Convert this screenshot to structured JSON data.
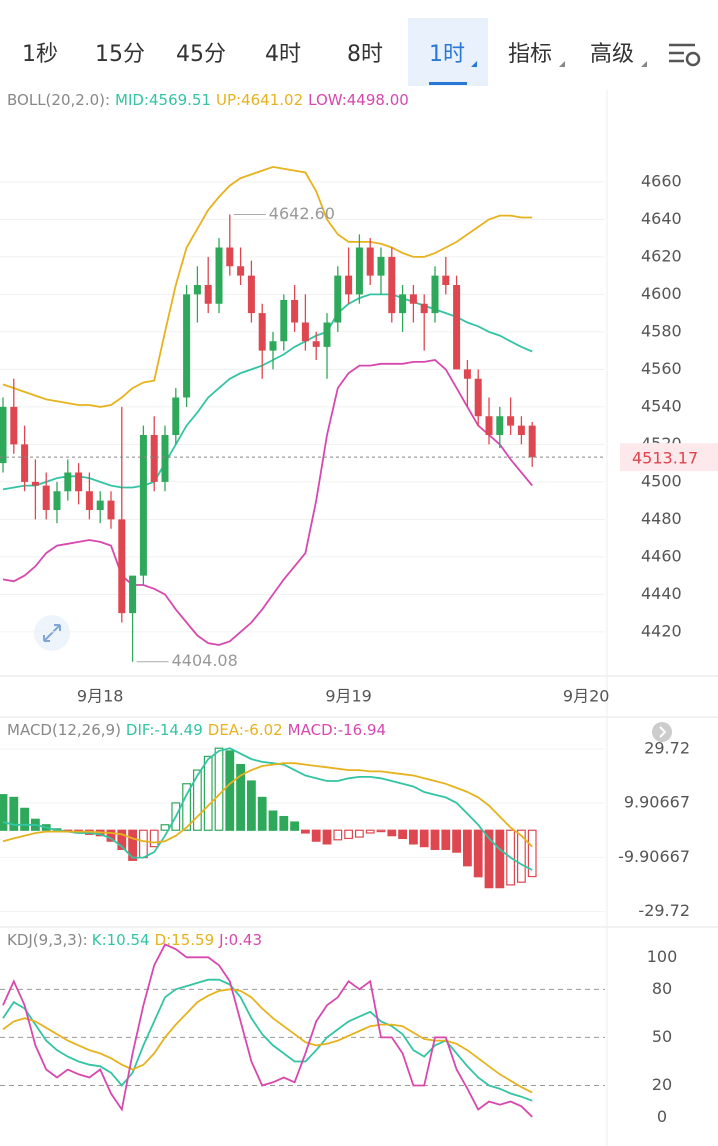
{
  "toolbar": {
    "tabs": [
      "1秒",
      "15分",
      "45分",
      "4时",
      "8时",
      "1时",
      "指标",
      "高级"
    ]
  },
  "chart_data": [
    {
      "type": "candlestick",
      "title": "BOLL(20,2.0):",
      "categories": [
        null,
        null,
        null,
        null,
        null,
        null,
        null,
        null,
        null,
        "9月18",
        null,
        null,
        null,
        null,
        null,
        null,
        null,
        null,
        null,
        null,
        null,
        null,
        null,
        null,
        null,
        null,
        null,
        null,
        null,
        null,
        null,
        null,
        "9月19",
        null,
        null,
        null,
        null,
        null,
        null,
        null,
        null,
        null,
        null,
        null,
        null,
        null,
        null,
        null,
        null,
        null,
        null,
        null,
        null,
        null,
        "9月20"
      ],
      "candles": [
        [
          4510,
          4545,
          4505,
          4540
        ],
        [
          4540,
          4555,
          4515,
          4520
        ],
        [
          4520,
          4530,
          4495,
          4500
        ],
        [
          4500,
          4512,
          4480,
          4498
        ],
        [
          4498,
          4505,
          4480,
          4485
        ],
        [
          4485,
          4500,
          4478,
          4495
        ],
        [
          4495,
          4512,
          4490,
          4505
        ],
        [
          4505,
          4510,
          4488,
          4495
        ],
        [
          4495,
          4505,
          4480,
          4485
        ],
        [
          4485,
          4495,
          4478,
          4490
        ],
        [
          4490,
          4495,
          4475,
          4480
        ],
        [
          4480,
          4540,
          4425,
          4430
        ],
        [
          4430,
          4445,
          4404.08,
          4450
        ],
        [
          4450,
          4530,
          4445,
          4525
        ],
        [
          4525,
          4535,
          4495,
          4500
        ],
        [
          4500,
          4530,
          4495,
          4525
        ],
        [
          4525,
          4550,
          4520,
          4545
        ],
        [
          4545,
          4605,
          4540,
          4600
        ],
        [
          4600,
          4615,
          4585,
          4605
        ],
        [
          4605,
          4620,
          4590,
          4595
        ],
        [
          4595,
          4630,
          4590,
          4625
        ],
        [
          4625,
          4642.6,
          4610,
          4615
        ],
        [
          4615,
          4625,
          4605,
          4610
        ],
        [
          4610,
          4618,
          4585,
          4590
        ],
        [
          4590,
          4595,
          4555,
          4570
        ],
        [
          4570,
          4580,
          4560,
          4575
        ],
        [
          4575,
          4600,
          4570,
          4597
        ],
        [
          4597,
          4605,
          4580,
          4585
        ],
        [
          4585,
          4600,
          4570,
          4575
        ],
        [
          4575,
          4580,
          4565,
          4572
        ],
        [
          4572,
          4590,
          4555,
          4585
        ],
        [
          4585,
          4615,
          4580,
          4610
        ],
        [
          4610,
          4625,
          4595,
          4600
        ],
        [
          4600,
          4632,
          4595,
          4625
        ],
        [
          4625,
          4630,
          4605,
          4610
        ],
        [
          4610,
          4625,
          4600,
          4620
        ],
        [
          4620,
          4625,
          4585,
          4590
        ],
        [
          4590,
          4605,
          4580,
          4600
        ],
        [
          4600,
          4605,
          4585,
          4595
        ],
        [
          4595,
          4600,
          4570,
          4590
        ],
        [
          4590,
          4615,
          4585,
          4610
        ],
        [
          4610,
          4620,
          4600,
          4605
        ],
        [
          4605,
          4610,
          4560,
          4560
        ],
        [
          4560,
          4565,
          4540,
          4555
        ],
        [
          4555,
          4560,
          4530,
          4535
        ],
        [
          4535,
          4545,
          4520,
          4525
        ],
        [
          4525,
          4540,
          4518,
          4535
        ],
        [
          4535,
          4545,
          4525,
          4530
        ],
        [
          4530,
          4535,
          4520,
          4525
        ],
        [
          4530,
          4532,
          4508,
          4513.17
        ],
        null,
        null,
        null,
        null,
        null
      ],
      "up_color": "#2ea85a",
      "down_color": "#de4750",
      "series": [
        {
          "name": "MID:4569.51",
          "color": "#33c4a4",
          "values": [
            4496,
            4497,
            4498,
            4498,
            4500,
            4502,
            4503,
            4503,
            4502,
            4500,
            4498,
            4497,
            4497,
            4498,
            4500,
            4510,
            4520,
            4530,
            4537,
            4545,
            4550,
            4555,
            4558,
            4560,
            4562,
            4565,
            4568,
            4572,
            4575,
            4578,
            4580,
            4590,
            4595,
            4598,
            4600,
            4600,
            4600,
            4598,
            4596,
            4594,
            4592,
            4590,
            4588,
            4585,
            4583,
            4580,
            4578,
            4575,
            4572,
            4569.51,
            null,
            null,
            null,
            null,
            null
          ]
        },
        {
          "name": "UP:4641.02",
          "color": "#e6b21e",
          "values": [
            4552,
            4550,
            4548,
            4546,
            4544,
            4543,
            4542,
            4541,
            4541,
            4540,
            4541,
            4545,
            4550,
            4553,
            4554,
            4580,
            4605,
            4625,
            4635,
            4645,
            4652,
            4658,
            4662,
            4664,
            4666,
            4668,
            4667,
            4666,
            4665,
            4655,
            4640,
            4632,
            4628,
            4628,
            4628,
            4627,
            4625,
            4622,
            4620,
            4620,
            4622,
            4625,
            4628,
            4632,
            4636,
            4640,
            4642,
            4642,
            4641,
            4641.02,
            null,
            null,
            null,
            null,
            null
          ]
        },
        {
          "name": "LOW:4498.00",
          "color": "#d748ae",
          "values": [
            4448,
            4447,
            4450,
            4455,
            4462,
            4466,
            4467,
            4468,
            4469,
            4468,
            4466,
            4450,
            4445,
            4445,
            4443,
            4440,
            4432,
            4425,
            4418,
            4414,
            4413,
            4415,
            4420,
            4425,
            4432,
            4440,
            4448,
            4455,
            4462,
            4490,
            4525,
            4550,
            4558,
            4562,
            4562,
            4563,
            4563,
            4563,
            4564,
            4564,
            4565,
            4560,
            4550,
            4540,
            4530,
            4525,
            4520,
            4512,
            4505,
            4498,
            null,
            null,
            null,
            null,
            null
          ]
        }
      ],
      "ylim": [
        4397,
        4709
      ],
      "yticks": [
        4420,
        4440,
        4460,
        4480,
        4500,
        4520,
        4540,
        4560,
        4580,
        4600,
        4620,
        4640,
        4660
      ],
      "grid": true,
      "high_label": {
        "value": 4642.6,
        "label": "4642.60"
      },
      "low_label": 4404.08,
      "last_price": 4513.17
    },
    {
      "type": "macd",
      "title": "MACD(12,26,9)",
      "up_color": "#2ea85a",
      "down_color": "#de4750",
      "series": [
        {
          "name": "DIF:-14.49",
          "color": "#33c4a4",
          "values": [
            3,
            2,
            2,
            2,
            1,
            0,
            -0.5,
            -1,
            -1,
            -1.5,
            -3,
            -6,
            -10,
            -10,
            -8,
            -2,
            5,
            13,
            20,
            26,
            29,
            30,
            28,
            26,
            25,
            24.5,
            24,
            22,
            20,
            19,
            18,
            18,
            19,
            19.5,
            19.5,
            19,
            18,
            17,
            16,
            14,
            13,
            12,
            10,
            6,
            2,
            -3,
            -7,
            -10,
            -12.5,
            -14.49,
            null,
            null,
            null,
            null,
            null
          ]
        },
        {
          "name": "DEA:-6.02",
          "color": "#e6b21e",
          "values": [
            -4,
            -3,
            -2,
            -1,
            -0.5,
            -0.5,
            -0.5,
            -0.5,
            -0.5,
            -0.8,
            -1,
            -1.5,
            -3,
            -4,
            -4.5,
            -4,
            -2,
            1,
            5,
            9,
            13,
            17,
            20,
            22,
            23.5,
            24,
            24.5,
            24.5,
            24,
            23.5,
            23,
            22.5,
            22,
            22,
            21.5,
            21.5,
            21,
            20.5,
            20,
            19,
            18,
            17,
            15.5,
            14,
            12,
            9,
            5,
            1,
            -2,
            -6.02,
            null,
            null,
            null,
            null,
            null
          ]
        },
        {
          "name": "MACD:-16.94",
          "color": "#d748ae",
          "bars": true,
          "values": [
            13,
            12,
            8,
            4,
            2,
            0.5,
            -0.5,
            -1,
            -1.5,
            -2,
            -4,
            -7,
            -11,
            -10,
            -6,
            2,
            10,
            17,
            22,
            27,
            30,
            29,
            24,
            18,
            12,
            7,
            5,
            3,
            -1,
            -4,
            -5,
            -3.5,
            -3,
            -2.5,
            -1,
            -0.5,
            -2,
            -3,
            -5,
            -6,
            -7,
            -7,
            -8,
            -13,
            -17,
            -21,
            -21,
            -20,
            -19,
            -16.94,
            null,
            null,
            null,
            null,
            null
          ]
        }
      ],
      "ylim": [
        -31,
        33
      ],
      "yticks": [
        29.72,
        9.90667,
        -9.90667,
        -29.72
      ],
      "grid": true
    },
    {
      "type": "kdj",
      "title": "KDJ(9,3,3):",
      "series": [
        {
          "name": "K:10.54",
          "color": "#33c4a4",
          "values": [
            62,
            72,
            68,
            58,
            48,
            42,
            38,
            35,
            33,
            32,
            28,
            20,
            28,
            45,
            60,
            75,
            80,
            82,
            84,
            86,
            86,
            83,
            75,
            62,
            52,
            45,
            40,
            35,
            35,
            42,
            50,
            55,
            60,
            63,
            66,
            60,
            57,
            52,
            42,
            38,
            45,
            48,
            40,
            32,
            25,
            20,
            18,
            15,
            13,
            10.54,
            null,
            null,
            null,
            null,
            null
          ]
        },
        {
          "name": "D:15.59",
          "color": "#e6b21e",
          "values": [
            55,
            60,
            62,
            60,
            56,
            52,
            48,
            45,
            42,
            40,
            37,
            33,
            30,
            33,
            40,
            50,
            58,
            65,
            72,
            76,
            79,
            80,
            79,
            75,
            68,
            62,
            57,
            52,
            47,
            45,
            46,
            48,
            51,
            54,
            57,
            58,
            58,
            57,
            53,
            49,
            48,
            48,
            46,
            42,
            37,
            32,
            27,
            23,
            19,
            15.59,
            null,
            null,
            null,
            null,
            null
          ]
        },
        {
          "name": "J:0.43",
          "color": "#d748ae",
          "values": [
            70,
            85,
            70,
            45,
            30,
            25,
            30,
            27,
            25,
            30,
            15,
            5,
            40,
            70,
            95,
            108,
            105,
            100,
            100,
            100,
            95,
            85,
            60,
            35,
            20,
            22,
            25,
            22,
            40,
            60,
            70,
            75,
            85,
            80,
            85,
            50,
            50,
            40,
            20,
            20,
            50,
            50,
            30,
            18,
            5,
            10,
            8,
            10,
            7,
            0.43,
            null,
            null,
            null,
            null,
            null
          ]
        }
      ],
      "ylim": [
        -14,
        117
      ],
      "yticks": [
        100,
        80,
        50,
        20,
        0
      ],
      "hlines": [
        80,
        50,
        20
      ]
    }
  ]
}
